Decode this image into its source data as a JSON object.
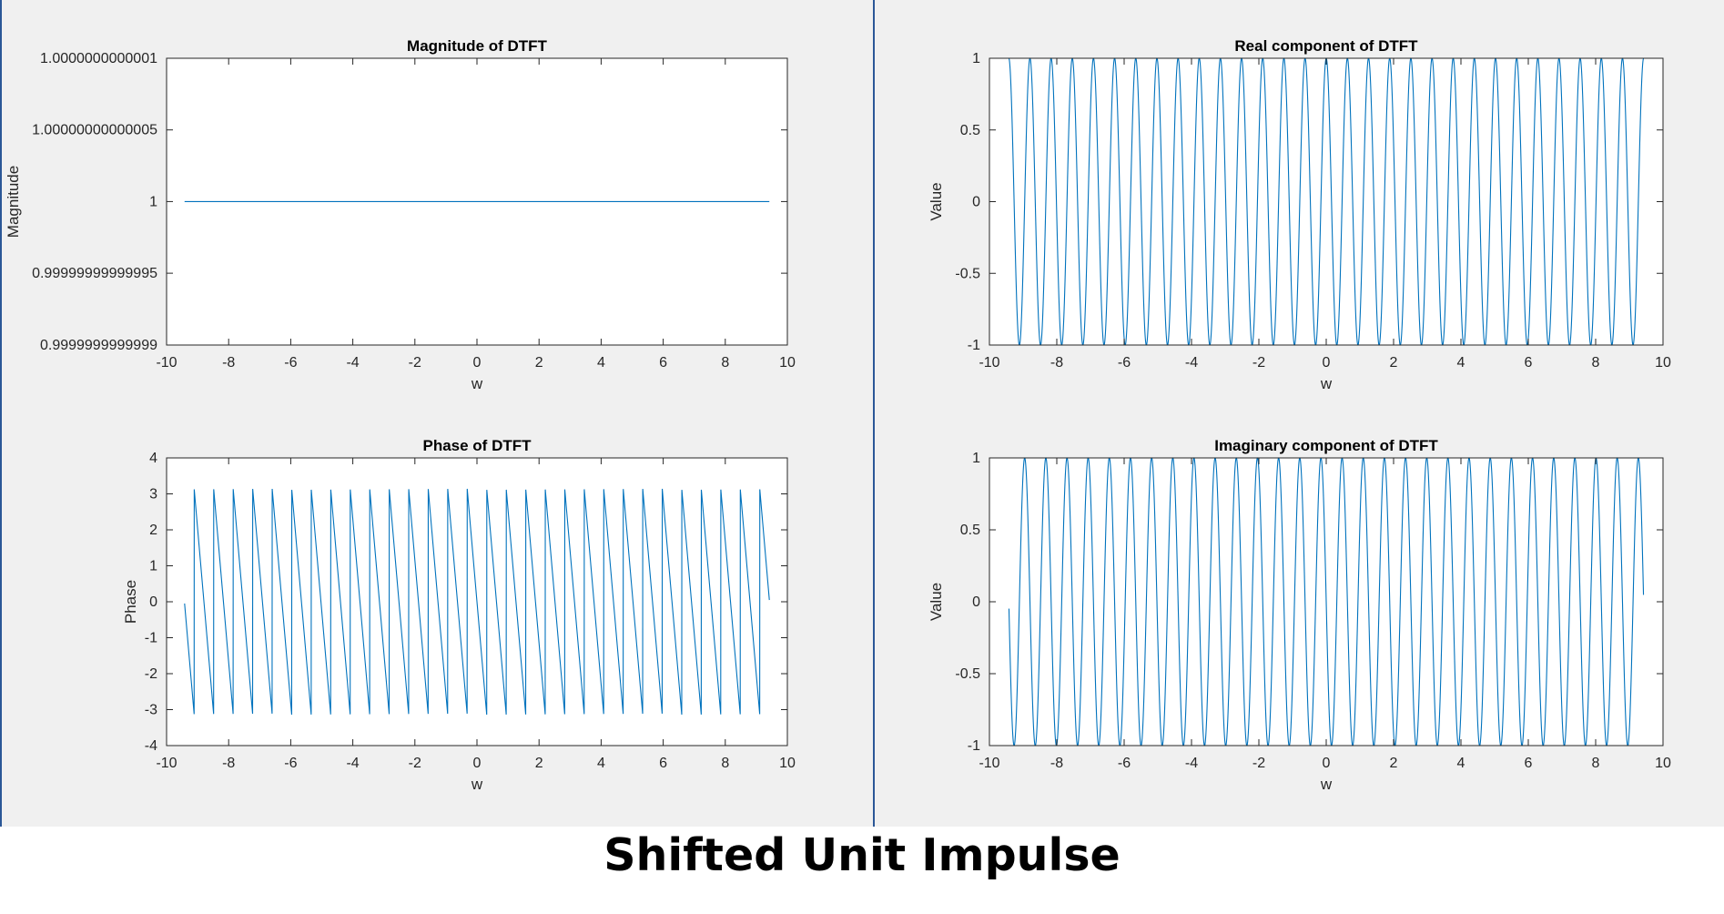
{
  "caption": "Shifted Unit Impulse",
  "colors": {
    "line": "#0072bd",
    "figure_bg": "#f0f0f0",
    "axes_bg": "#ffffff",
    "divider": "#2b5797"
  },
  "chart_data": [
    {
      "type": "line",
      "title": "Magnitude of DTFT",
      "xlabel": "w",
      "ylabel": "Magnitude",
      "xlim": [
        -10,
        10
      ],
      "ylim": [
        0.9999999999999,
        1.0000000000001
      ],
      "xticks": [
        -10,
        -8,
        -6,
        -4,
        -2,
        0,
        2,
        4,
        6,
        8,
        10
      ],
      "xtick_labels": [
        "-10",
        "-8",
        "-6",
        "-4",
        "-2",
        "0",
        "2",
        "4",
        "6",
        "8",
        "10"
      ],
      "yticks": [
        0.9999999999999,
        0.99999999999995,
        1,
        1.00000000000005,
        1.0000000000001
      ],
      "ytick_labels": [
        "0.9999999999999",
        "0.99999999999995",
        "1",
        "1.00000000000005",
        "1.0000000000001"
      ],
      "grid": false,
      "series": [
        {
          "function": "magnitude",
          "x_range": [
            -9.42,
            9.42
          ],
          "value": 1
        }
      ]
    },
    {
      "type": "line",
      "title": "Real component of DTFT",
      "xlabel": "w",
      "ylabel": "Value",
      "xlim": [
        -10,
        10
      ],
      "ylim": [
        -1,
        1
      ],
      "xticks": [
        -10,
        -8,
        -6,
        -4,
        -2,
        0,
        2,
        4,
        6,
        8,
        10
      ],
      "xtick_labels": [
        "-10",
        "-8",
        "-6",
        "-4",
        "-2",
        "0",
        "2",
        "4",
        "6",
        "8",
        "10"
      ],
      "yticks": [
        -1,
        -0.5,
        0,
        0.5,
        1
      ],
      "ytick_labels": [
        "-1",
        "-0.5",
        "0",
        "0.5",
        "1"
      ],
      "grid": false,
      "series": [
        {
          "function": "cos",
          "x_range": [
            -9.42,
            9.42
          ],
          "frequency": 10
        }
      ]
    },
    {
      "type": "line",
      "title": "Phase of DTFT",
      "xlabel": "w",
      "ylabel": "Phase",
      "xlim": [
        -10,
        10
      ],
      "ylim": [
        -4,
        4
      ],
      "xticks": [
        -10,
        -8,
        -6,
        -4,
        -2,
        0,
        2,
        4,
        6,
        8,
        10
      ],
      "xtick_labels": [
        "-10",
        "-8",
        "-6",
        "-4",
        "-2",
        "0",
        "2",
        "4",
        "6",
        "8",
        "10"
      ],
      "yticks": [
        -4,
        -3,
        -2,
        -1,
        0,
        1,
        2,
        3,
        4
      ],
      "ytick_labels": [
        "-4",
        "-3",
        "-2",
        "-1",
        "0",
        "1",
        "2",
        "3",
        "4"
      ],
      "grid": false,
      "series": [
        {
          "function": "phase",
          "x_range": [
            -9.42,
            9.42
          ],
          "frequency": 10
        }
      ]
    },
    {
      "type": "line",
      "title": "Imaginary component of DTFT",
      "xlabel": "w",
      "ylabel": "Value",
      "xlim": [
        -10,
        10
      ],
      "ylim": [
        -1,
        1
      ],
      "xticks": [
        -10,
        -8,
        -6,
        -4,
        -2,
        0,
        2,
        4,
        6,
        8,
        10
      ],
      "xtick_labels": [
        "-10",
        "-8",
        "-6",
        "-4",
        "-2",
        "0",
        "2",
        "4",
        "6",
        "8",
        "10"
      ],
      "yticks": [
        -1,
        -0.5,
        0,
        0.5,
        1
      ],
      "ytick_labels": [
        "-1",
        "-0.5",
        "0",
        "0.5",
        "1"
      ],
      "grid": false,
      "series": [
        {
          "function": "neg_sin",
          "x_range": [
            -9.42,
            9.42
          ],
          "frequency": 10
        }
      ]
    }
  ]
}
